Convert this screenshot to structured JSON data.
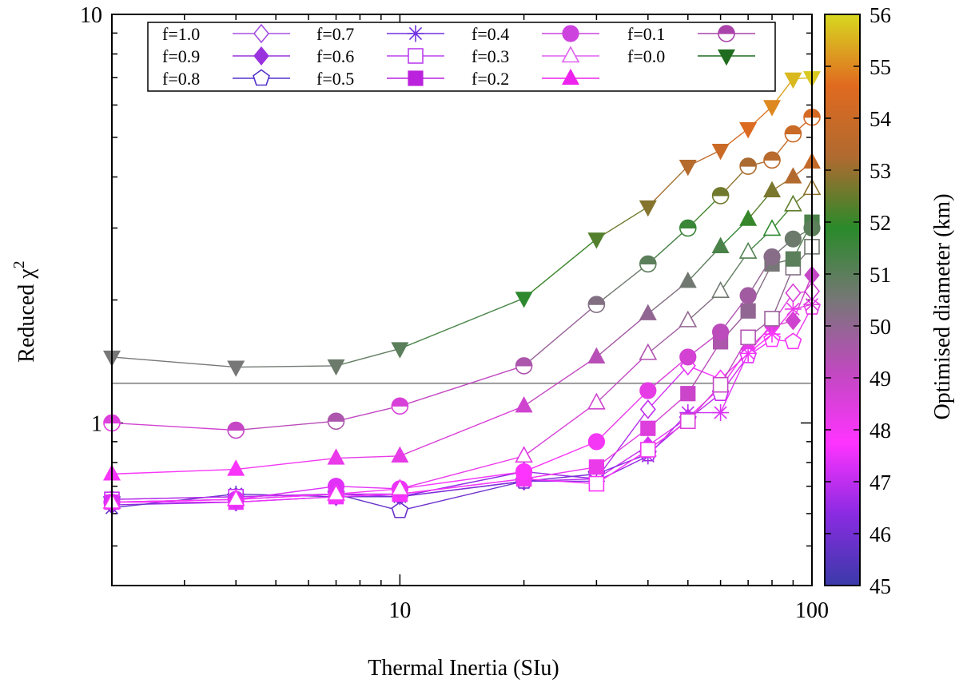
{
  "chart_data": {
    "type": "line",
    "xscale": "log",
    "yscale": "log",
    "xlim": [
      2,
      100
    ],
    "ylim": [
      0.4,
      10
    ],
    "xlabel": "Thermal Inertia (SIu)",
    "ylabel": "Reduced χ",
    "ylabel_sup": "2",
    "x_ticks": [
      {
        "value": 10,
        "label": "10"
      },
      {
        "value": 100,
        "label": "100"
      }
    ],
    "y_ticks": [
      {
        "value": 1,
        "label": "1"
      },
      {
        "value": 10,
        "label": "10"
      }
    ],
    "reference_line": {
      "y": 1.25,
      "color": "#999999"
    },
    "colorbar": {
      "label": "Optimised diameter (km)",
      "min": 45,
      "max": 56,
      "tick_labels": [
        "45",
        "46",
        "47",
        "48",
        "49",
        "50",
        "51",
        "52",
        "53",
        "54",
        "55",
        "56"
      ],
      "stops": [
        "#3a3aa8",
        "#8a2be2",
        "#ff33ff",
        "#c049c0",
        "#777777",
        "#2a8a2a",
        "#b06a30",
        "#e06a20",
        "#d8d820"
      ]
    },
    "x": [
      2,
      4,
      7,
      10,
      20,
      30,
      40,
      50,
      60,
      70,
      80,
      90,
      100
    ],
    "series": [
      {
        "name": "f=1.0",
        "marker": "diamond-open",
        "color": "#a550e0",
        "values": [
          0.64,
          0.65,
          0.67,
          0.66,
          0.76,
          0.73,
          1.08,
          1.38,
          1.28,
          1.48,
          1.75,
          2.08,
          2.1
        ],
        "diameters": [
          46.2,
          46.2,
          46.3,
          46.3,
          46.5,
          46.6,
          47.0,
          47.5,
          47.8,
          48.0,
          48.3,
          48.6,
          48.8
        ]
      },
      {
        "name": "f=0.9",
        "marker": "diamond-filled",
        "color": "#9933dd",
        "values": [
          0.63,
          0.64,
          0.66,
          0.66,
          0.72,
          0.73,
          0.88,
          1.03,
          1.22,
          1.52,
          1.72,
          1.78,
          2.3
        ],
        "diameters": [
          46.5,
          46.5,
          46.6,
          46.7,
          46.9,
          47.0,
          47.3,
          47.6,
          48.0,
          48.3,
          48.5,
          48.8,
          49.0
        ]
      },
      {
        "name": "f=0.8",
        "marker": "pentagon-open",
        "color": "#5533cc",
        "values": [
          0.65,
          0.66,
          0.67,
          0.61,
          0.72,
          0.75,
          0.84,
          1.02,
          1.18,
          1.46,
          1.6,
          1.58,
          1.92
        ],
        "diameters": [
          45.6,
          45.6,
          45.7,
          45.8,
          46.0,
          46.2,
          46.5,
          46.8,
          47.1,
          47.4,
          47.7,
          48.0,
          48.2
        ]
      },
      {
        "name": "f=0.7",
        "marker": "star",
        "color": "#7030e0",
        "values": [
          0.62,
          0.67,
          0.66,
          0.66,
          0.72,
          0.72,
          0.83,
          1.06,
          1.06,
          1.48,
          1.65,
          1.9,
          1.95
        ],
        "diameters": [
          45.8,
          45.8,
          45.9,
          46.0,
          46.2,
          46.4,
          46.7,
          47.0,
          47.3,
          47.6,
          47.9,
          48.2,
          48.5
        ]
      },
      {
        "name": "f=0.6",
        "marker": "square-open",
        "color": "#bb40ee",
        "values": [
          0.65,
          0.66,
          0.67,
          0.67,
          0.73,
          0.71,
          0.86,
          1.01,
          1.24,
          1.62,
          1.8,
          2.4,
          2.7
        ],
        "diameters": [
          47.0,
          47.0,
          47.1,
          47.2,
          47.5,
          47.7,
          48.0,
          48.5,
          49.0,
          49.4,
          49.8,
          50.3,
          50.6
        ]
      },
      {
        "name": "f=0.5",
        "marker": "square-filled",
        "color": "#bb22dd",
        "values": [
          0.64,
          0.64,
          0.66,
          0.67,
          0.73,
          0.78,
          0.97,
          1.18,
          1.58,
          1.88,
          2.45,
          2.52,
          3.1
        ],
        "diameters": [
          47.5,
          47.5,
          47.6,
          47.7,
          48.0,
          48.2,
          48.5,
          48.9,
          49.5,
          50.0,
          50.5,
          51.0,
          51.3
        ]
      },
      {
        "name": "f=0.4",
        "marker": "circle-filled",
        "color": "#cc44dd",
        "values": [
          0.64,
          0.65,
          0.7,
          0.69,
          0.76,
          0.9,
          1.2,
          1.45,
          1.67,
          2.05,
          2.55,
          2.82,
          3.0
        ],
        "diameters": [
          47.3,
          47.3,
          47.4,
          47.5,
          47.8,
          48.0,
          48.3,
          48.7,
          49.2,
          49.7,
          50.2,
          50.7,
          51.0
        ]
      },
      {
        "name": "f=0.3",
        "marker": "triangle-up-open",
        "color": "#e060f0",
        "values": [
          0.64,
          0.65,
          0.67,
          0.69,
          0.83,
          1.12,
          1.48,
          1.78,
          2.1,
          2.62,
          2.98,
          3.42,
          3.75
        ],
        "diameters": [
          47.8,
          47.8,
          47.9,
          48.0,
          48.4,
          48.8,
          49.4,
          50.0,
          50.6,
          51.2,
          51.8,
          52.4,
          52.9
        ]
      },
      {
        "name": "f=0.2",
        "marker": "triangle-up-filled",
        "color": "#ee22ee",
        "values": [
          0.75,
          0.77,
          0.82,
          0.83,
          1.1,
          1.45,
          1.85,
          2.22,
          2.7,
          3.15,
          3.7,
          4.0,
          4.35
        ],
        "diameters": [
          47.9,
          47.9,
          48.2,
          48.3,
          48.8,
          49.3,
          50.0,
          50.6,
          51.3,
          52.0,
          52.7,
          53.3,
          53.8
        ]
      },
      {
        "name": "f=0.1",
        "marker": "circle-half",
        "color": "#aa44aa",
        "values": [
          1.0,
          0.96,
          1.01,
          1.1,
          1.38,
          1.95,
          2.45,
          3.0,
          3.6,
          4.25,
          4.4,
          5.1,
          5.6
        ],
        "diameters": [
          48.5,
          49.0,
          49.5,
          48.6,
          49.5,
          50.3,
          51.0,
          51.6,
          52.6,
          53.2,
          53.5,
          54.0,
          54.3
        ]
      },
      {
        "name": "f=0.0",
        "marker": "triangle-down-filled",
        "color": "#1f6b1f",
        "values": [
          1.45,
          1.37,
          1.38,
          1.52,
          2.02,
          2.82,
          3.38,
          4.25,
          4.65,
          5.25,
          5.95,
          6.95,
          7.0
        ],
        "diameters": [
          50.5,
          50.5,
          50.7,
          51.0,
          51.8,
          52.3,
          52.8,
          53.4,
          54.0,
          54.5,
          55.0,
          55.6,
          55.8
        ]
      }
    ]
  }
}
